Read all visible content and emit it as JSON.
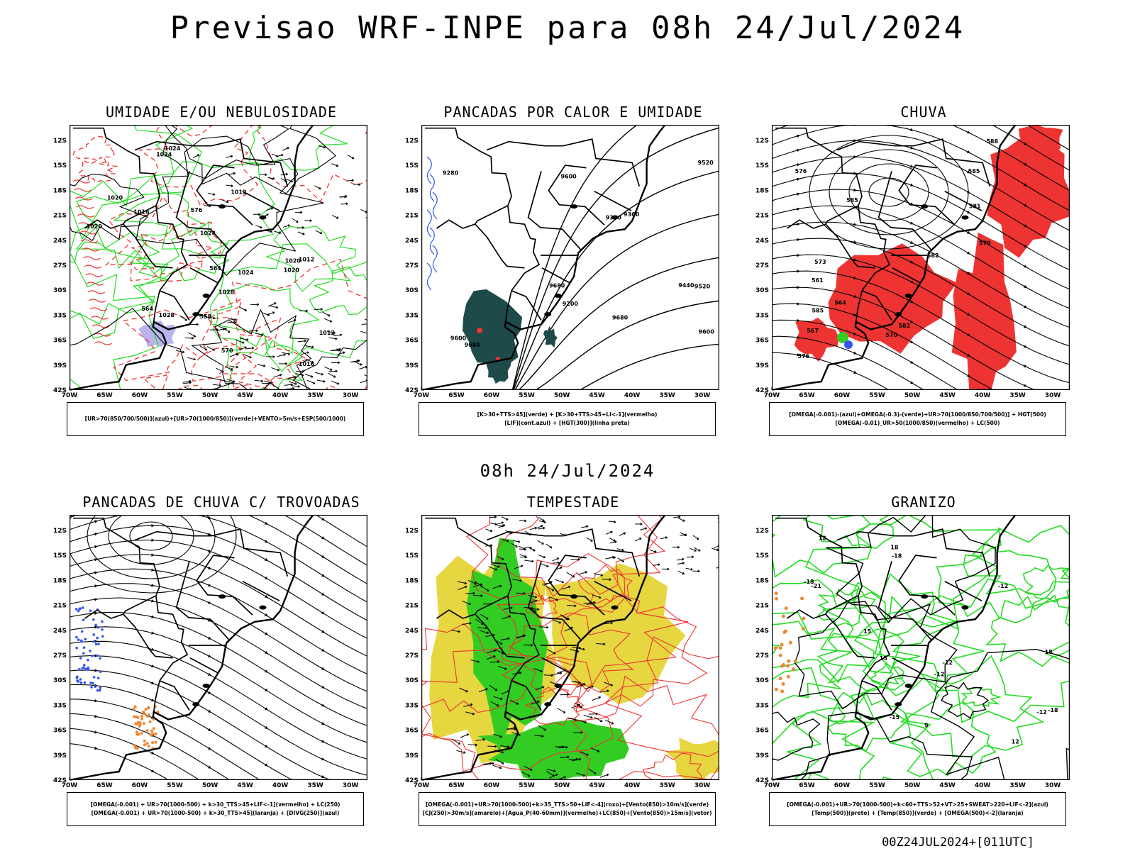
{
  "title": "Previsao WRF-INPE  para 08h 24/Jul/2024",
  "mid_title": "08h 24/Jul/2024",
  "footer": "00Z24JUL2024+[011UTC]",
  "axis": {
    "lat_labels": [
      "12S",
      "15S",
      "18S",
      "21S",
      "24S",
      "27S",
      "30S",
      "33S",
      "36S",
      "39S",
      "42S"
    ],
    "lon_labels": [
      "70W",
      "65W",
      "60W",
      "55W",
      "50W",
      "45W",
      "40W",
      "35W",
      "30W"
    ]
  },
  "panels": [
    {
      "title": "UMIDADE E/OU NEBULOSIDADE",
      "legend": [
        "[UR>70(850/700/500)](azul)+[UR>70(1000/850)](verde)+VENTO>5m/s+ESP(500/1000)"
      ],
      "labels": [
        "1016",
        "1020",
        "1024",
        "1024",
        "1028",
        "1012",
        "1020",
        "1024",
        "1012",
        "1020",
        "1024",
        "1020",
        "1016",
        "1012",
        "1028",
        "570",
        "576",
        "564",
        "564",
        "558"
      ]
    },
    {
      "title": "PANCADAS POR CALOR E UMIDADE",
      "legend": [
        "[K>30+TTS>45](verde) + [K>30+TTS>45+LI<-1](vermelho)",
        "[LIF](cont.azul) + [HGT(300)](linha preta)"
      ],
      "labels": [
        "9600",
        "9680",
        "9600",
        "9520",
        "9440",
        "9360",
        "9280",
        "9200",
        "9600",
        "9520",
        "9360",
        "9680",
        "9680"
      ]
    },
    {
      "title": "CHUVA",
      "legend": [
        "[OMEGA(-0.001)-(azul)+OMEGA(-0.3)-(verde)+UR>70(1000/850/700/500)] + HGT(500)",
        "[OMEGA(-0.01)_UR>50(1000/850)(vermelho) + LC(500)"
      ],
      "labels": [
        "588",
        "585",
        "581",
        "585",
        "582",
        "579",
        "576",
        "570",
        "567",
        "564",
        "561",
        "585",
        "582",
        "576",
        "573"
      ]
    },
    {
      "title": "PANCADAS DE CHUVA C/ TROVOADAS",
      "legend": [
        "[OMEGA(-0.001) + UR>70(1000-500) + k>30_TTS>45+LIF<-1](vermelho) + LC(250)",
        "[OMEGA(-0.001) + UR>70(1000-500) + k>30_TTS>45](laranja) + [DIVG(250)](azul)"
      ],
      "labels": []
    },
    {
      "title": "TEMPESTADE",
      "legend": [
        "[OMEGA(-0.001)+UR>70(1000-500)+k>35_TTS>50+LIF<-4](roxo)+[Vento(850)>10m/s](verde)",
        "[CJ(250)>30m/s](amarelo)+[Agua_P(40-60mm)](vermelho)+LC(850)+[Vento(850)>15m/s](vetor)"
      ],
      "labels": []
    },
    {
      "title": "GRANIZO",
      "legend": [
        "[OMEGA(-0.001)+UR>70(1000-500)+k<60+TTS>52+VT>25+SWEAT>220+LIF<-2](azul)",
        "[Temp(500)](preto) + [Temp(850)](verde) + [OMEGA(500)<-2](laranja)"
      ],
      "labels": [
        "-12",
        "-12",
        "-12",
        "-12",
        "-18",
        "-18",
        "-21",
        "-18",
        "-15",
        "12",
        "15",
        "12",
        "15",
        "18",
        "9",
        "18"
      ]
    }
  ],
  "colors": {
    "frame": "#000000",
    "green": "#22dd22",
    "red": "#ee3333",
    "blue": "#3355ee",
    "dark_teal": "#1f4a4a",
    "yellow": "#e6d640",
    "field_green": "#33cc22",
    "orange": "#ee8833",
    "lavender": "#b9b4ee"
  }
}
